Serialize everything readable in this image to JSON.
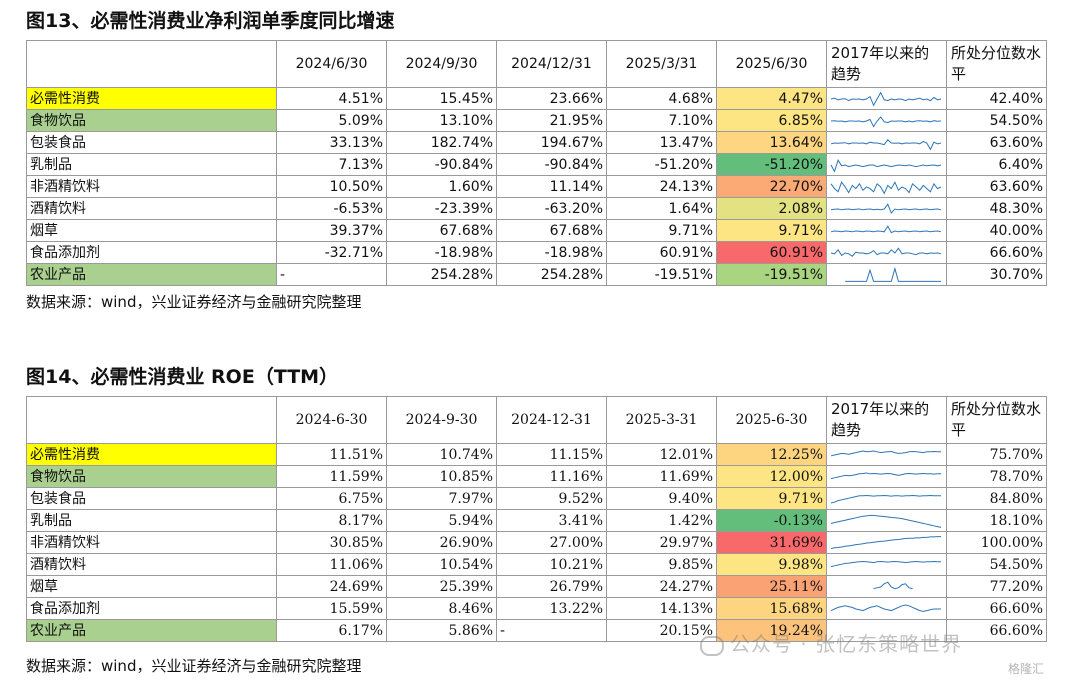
{
  "colors": {
    "yellow": "#ffff00",
    "green_label": "#a9d08e",
    "spark": "#2e75b6"
  },
  "table1": {
    "title": "图13、必需性消费业净利润单季度同比增速",
    "headers": [
      "2024/6/30",
      "2024/9/30",
      "2024/12/31",
      "2025/3/31",
      "2025/6/30"
    ],
    "trend_header": "2017年以来的趋势",
    "pct_header": "所处分位数水平",
    "rows": [
      {
        "name": "必需性消费",
        "values": [
          "4.51%",
          "15.45%",
          "23.66%",
          "4.68%",
          "4.47%"
        ],
        "pct": "42.40%",
        "label_color": "#ffff00",
        "heat_color": "#fde583",
        "spark": [
          0.5,
          0.45,
          0.55,
          0.5,
          0.48,
          0.6,
          0.5,
          0.52,
          0.5,
          0.55,
          0.5,
          0.35,
          0.9,
          0.5,
          0.1,
          0.55,
          0.6,
          0.5,
          0.55,
          0.5,
          0.52,
          0.6,
          0.5,
          0.55,
          0.5,
          0.45,
          0.55,
          0.5,
          0.6,
          0.4,
          0.55,
          0.5
        ]
      },
      {
        "name": "食物饮品",
        "values": [
          "5.09%",
          "13.10%",
          "21.95%",
          "7.10%",
          "6.85%"
        ],
        "pct": "54.50%",
        "label_color": "#a9d08e",
        "heat_color": "#fde583",
        "spark": [
          0.5,
          0.48,
          0.52,
          0.5,
          0.55,
          0.5,
          0.5,
          0.52,
          0.5,
          0.55,
          0.5,
          0.4,
          0.85,
          0.5,
          0.25,
          0.55,
          0.6,
          0.5,
          0.52,
          0.5,
          0.5,
          0.55,
          0.5,
          0.55,
          0.5,
          0.48,
          0.52,
          0.5,
          0.55,
          0.48,
          0.52,
          0.5
        ]
      },
      {
        "name": "包装食品",
        "values": [
          "33.13%",
          "182.74%",
          "194.67%",
          "13.47%",
          "13.64%"
        ],
        "pct": "63.60%",
        "label_color": "",
        "heat_color": "#fed580",
        "spark": [
          0.55,
          0.5,
          0.52,
          0.5,
          0.48,
          0.55,
          0.5,
          0.5,
          0.52,
          0.5,
          0.55,
          0.45,
          0.5,
          0.5,
          0.55,
          0.6,
          0.3,
          0.5,
          0.52,
          0.5,
          0.55,
          0.5,
          0.52,
          0.5,
          0.5,
          0.55,
          0.4,
          0.5,
          0.9,
          0.45,
          0.55,
          0.5
        ]
      },
      {
        "name": "乳制品",
        "values": [
          "7.13%",
          "-90.84%",
          "-90.84%",
          "-51.20%",
          "-51.20%"
        ],
        "pct": "6.40%",
        "label_color": "",
        "heat_color": "#63be7b",
        "spark": [
          0.5,
          0.9,
          0.2,
          0.55,
          0.5,
          0.6,
          0.55,
          0.5,
          0.55,
          0.6,
          0.55,
          0.5,
          0.5,
          0.6,
          0.55,
          0.5,
          0.55,
          0.6,
          0.55,
          0.5,
          0.52,
          0.55,
          0.5,
          0.55,
          0.6,
          0.55,
          0.5,
          0.55,
          0.52,
          0.5,
          0.55,
          0.5
        ]
      },
      {
        "name": "非酒精饮料",
        "values": [
          "10.50%",
          "1.60%",
          "11.14%",
          "24.13%",
          "22.70%"
        ],
        "pct": "63.60%",
        "label_color": "",
        "heat_color": "#fbaa76",
        "spark": [
          0.3,
          0.6,
          0.8,
          0.2,
          0.5,
          0.85,
          0.4,
          0.6,
          0.3,
          0.7,
          0.5,
          0.6,
          0.8,
          0.3,
          0.5,
          0.9,
          0.4,
          0.6,
          0.2,
          0.7,
          0.5,
          0.6,
          0.85,
          0.3,
          0.5,
          0.7,
          0.4,
          0.6,
          0.8,
          0.3,
          0.6,
          0.5
        ]
      },
      {
        "name": "酒精饮料",
        "values": [
          "-6.53%",
          "-23.39%",
          "-63.20%",
          "1.64%",
          "2.08%"
        ],
        "pct": "48.30%",
        "label_color": "",
        "heat_color": "#e3e283",
        "spark": [
          0.55,
          0.52,
          0.5,
          0.55,
          0.52,
          0.5,
          0.55,
          0.52,
          0.5,
          0.55,
          0.52,
          0.5,
          0.55,
          0.52,
          0.55,
          0.5,
          0.2,
          0.75,
          0.5,
          0.55,
          0.52,
          0.5,
          0.55,
          0.52,
          0.5,
          0.55,
          0.52,
          0.5,
          0.55,
          0.52,
          0.5,
          0.55
        ]
      },
      {
        "name": "烟草",
        "values": [
          "39.37%",
          "67.68%",
          "67.68%",
          "9.71%",
          "9.71%"
        ],
        "pct": "40.00%",
        "label_color": "",
        "heat_color": "#fde583",
        "spark": [
          0.55,
          0.5,
          0.52,
          0.55,
          0.5,
          0.52,
          0.55,
          0.5,
          0.52,
          0.55,
          0.5,
          0.52,
          0.55,
          0.5,
          0.52,
          0.55,
          0.2,
          0.6,
          0.5,
          0.55,
          0.52,
          0.5,
          0.55,
          0.52,
          0.5,
          0.55,
          0.52,
          0.5,
          0.55,
          0.52,
          0.5,
          0.55
        ]
      },
      {
        "name": "食品添加剂",
        "values": [
          "-32.71%",
          "-18.98%",
          "-18.98%",
          "60.91%",
          "60.91%"
        ],
        "pct": "66.60%",
        "label_color": "",
        "heat_color": "#f8696b",
        "spark": [
          0.5,
          0.55,
          0.3,
          0.65,
          0.5,
          0.55,
          0.7,
          0.45,
          0.5,
          0.5,
          0.55,
          0.5,
          0.35,
          0.6,
          0.5,
          0.5,
          0.55,
          0.3,
          0.5,
          0.2,
          0.55,
          0.5,
          0.5,
          0.55,
          0.6,
          0.5,
          0.5,
          0.55,
          0.5,
          0.52,
          0.5,
          0.55
        ]
      },
      {
        "name": "农业产品",
        "values": [
          "-",
          "254.28%",
          "254.28%",
          "-19.51%",
          "-19.51%"
        ],
        "pct": "30.70%",
        "label_color": "#a9d08e",
        "heat_color": "#aad580",
        "spark": [
          null,
          null,
          null,
          null,
          0.9,
          0.9,
          0.9,
          0.9,
          0.9,
          0.9,
          0.9,
          0.2,
          0.9,
          0.9,
          0.9,
          0.9,
          0.9,
          0.9,
          0.1,
          0.9,
          0.9,
          0.9,
          0.9,
          0.9,
          0.9,
          0.9,
          0.9,
          0.9,
          0.9,
          0.9,
          0.9,
          0.9
        ]
      }
    ]
  },
  "source1": "数据来源：wind，兴业证券经济与金融研究院整理",
  "table2": {
    "title": "图14、必需性消费业 ROE（TTM）",
    "headers": [
      "2024-6-30",
      "2024-9-30",
      "2024-12-31",
      "2025-3-31",
      "2025-6-30"
    ],
    "trend_header": "2017年以来的趋势",
    "pct_header": "所处分位数水平",
    "rows": [
      {
        "name": "必需性消费",
        "values": [
          "11.51%",
          "10.74%",
          "11.15%",
          "12.01%",
          "12.25%"
        ],
        "pct": "75.70%",
        "label_color": "#ffff00",
        "heat_color": "#fdd580",
        "spark": [
          0.55,
          0.5,
          0.45,
          0.4,
          0.42,
          0.45,
          0.4,
          0.35,
          0.3,
          0.25,
          0.3,
          0.28,
          0.25,
          0.3,
          0.35,
          0.32,
          0.3,
          0.28,
          0.35,
          0.4,
          0.38,
          0.35,
          0.3,
          0.28,
          0.3,
          0.32,
          0.35,
          0.3,
          0.3,
          0.28,
          0.3,
          0.3
        ]
      },
      {
        "name": "食物饮品",
        "values": [
          "11.59%",
          "10.85%",
          "11.16%",
          "11.69%",
          "12.00%"
        ],
        "pct": "78.70%",
        "label_color": "#a9d08e",
        "heat_color": "#fde583",
        "spark": [
          0.6,
          0.55,
          0.5,
          0.45,
          0.4,
          0.42,
          0.4,
          0.35,
          0.3,
          0.28,
          0.25,
          0.3,
          0.28,
          0.3,
          0.32,
          0.3,
          0.28,
          0.3,
          0.35,
          0.4,
          0.35,
          0.3,
          0.28,
          0.3,
          0.32,
          0.3,
          0.28,
          0.3,
          0.3,
          0.32,
          0.3,
          0.3
        ]
      },
      {
        "name": "包装食品",
        "values": [
          "6.75%",
          "7.97%",
          "9.52%",
          "9.40%",
          "9.71%"
        ],
        "pct": "84.80%",
        "label_color": "",
        "heat_color": "#fde583",
        "spark": [
          0.75,
          0.7,
          0.6,
          0.55,
          0.5,
          0.45,
          0.4,
          0.35,
          0.3,
          0.3,
          0.28,
          0.3,
          0.32,
          0.3,
          0.3,
          0.28,
          0.3,
          0.32,
          0.3,
          0.3,
          0.32,
          0.3,
          0.3,
          0.28,
          0.3,
          0.32,
          0.3,
          0.3,
          0.28,
          0.3,
          0.3,
          0.3
        ]
      },
      {
        "name": "乳制品",
        "values": [
          "8.17%",
          "5.94%",
          "3.41%",
          "1.42%",
          "-0.13%"
        ],
        "pct": "18.10%",
        "label_color": "",
        "heat_color": "#63be7b",
        "spark": [
          0.65,
          0.6,
          0.55,
          0.5,
          0.45,
          0.4,
          0.35,
          0.3,
          0.25,
          0.2,
          0.18,
          0.15,
          0.15,
          0.18,
          0.2,
          0.22,
          0.25,
          0.28,
          0.3,
          0.32,
          0.35,
          0.4,
          0.45,
          0.5,
          0.55,
          0.6,
          0.65,
          0.7,
          0.75,
          0.8,
          0.85,
          0.9
        ]
      },
      {
        "name": "非酒精饮料",
        "values": [
          "30.85%",
          "26.90%",
          "27.00%",
          "29.97%",
          "31.69%"
        ],
        "pct": "100.00%",
        "label_color": "",
        "heat_color": "#f8696b",
        "spark": [
          0.85,
          0.8,
          0.78,
          0.75,
          0.7,
          0.68,
          0.65,
          0.6,
          0.58,
          0.55,
          0.5,
          0.48,
          0.45,
          0.42,
          0.4,
          0.38,
          0.35,
          0.32,
          0.3,
          0.28,
          0.25,
          0.22,
          0.2,
          0.2,
          0.18,
          0.18,
          0.15,
          0.15,
          0.12,
          0.12,
          0.1,
          0.1
        ]
      },
      {
        "name": "酒精饮料",
        "values": [
          "11.06%",
          "10.54%",
          "10.21%",
          "9.85%",
          "9.98%"
        ],
        "pct": "54.50%",
        "label_color": "",
        "heat_color": "#fde583",
        "spark": [
          0.6,
          0.55,
          0.5,
          0.45,
          0.4,
          0.38,
          0.35,
          0.32,
          0.3,
          0.28,
          0.3,
          0.32,
          0.35,
          0.3,
          0.28,
          0.3,
          0.32,
          0.3,
          0.28,
          0.3,
          0.32,
          0.35,
          0.32,
          0.3,
          0.28,
          0.3,
          0.32,
          0.3,
          0.3,
          0.28,
          0.3,
          0.3
        ]
      },
      {
        "name": "烟草",
        "values": [
          "24.69%",
          "25.39%",
          "26.79%",
          "24.27%",
          "25.11%"
        ],
        "pct": "77.20%",
        "label_color": "",
        "heat_color": "#fba275",
        "spark": [
          null,
          null,
          null,
          null,
          null,
          null,
          null,
          null,
          null,
          null,
          null,
          null,
          0.6,
          0.55,
          0.5,
          0.3,
          0.2,
          0.5,
          0.6,
          0.55,
          0.35,
          0.3,
          0.55,
          0.6,
          null,
          0.55,
          null,
          0.5,
          null,
          0.55,
          null,
          0.5
        ]
      },
      {
        "name": "食品添加剂",
        "values": [
          "15.59%",
          "8.46%",
          "13.22%",
          "14.13%",
          "15.68%"
        ],
        "pct": "66.60%",
        "label_color": "",
        "heat_color": "#fdd580",
        "spark": [
          0.6,
          0.5,
          0.4,
          0.35,
          0.3,
          0.35,
          0.4,
          0.5,
          0.55,
          0.6,
          0.5,
          0.4,
          0.35,
          0.3,
          0.4,
          0.5,
          0.55,
          0.6,
          0.5,
          0.4,
          0.3,
          0.25,
          0.3,
          0.4,
          0.5,
          0.6,
          0.65,
          0.6,
          0.55,
          0.5,
          0.5,
          0.5
        ]
      },
      {
        "name": "农业产品",
        "values": [
          "6.17%",
          "5.86%",
          "-",
          "20.15%",
          "19.24%"
        ],
        "pct": "66.60%",
        "label_color": "#a9d08e",
        "heat_color": "#fdc37d",
        "spark": [
          null,
          null,
          null,
          null,
          null,
          null,
          null,
          null,
          null,
          null,
          null,
          null,
          null,
          null,
          null,
          null,
          null,
          null,
          null,
          null,
          null,
          null,
          null,
          null,
          null,
          null,
          null,
          null,
          null,
          null,
          null,
          null
        ]
      }
    ]
  },
  "source2": "数据来源：wind，兴业证券经济与金融研究院整理",
  "watermark": {
    "text": "公众号 · 张忆东策略世界",
    "logo": "格隆汇"
  }
}
